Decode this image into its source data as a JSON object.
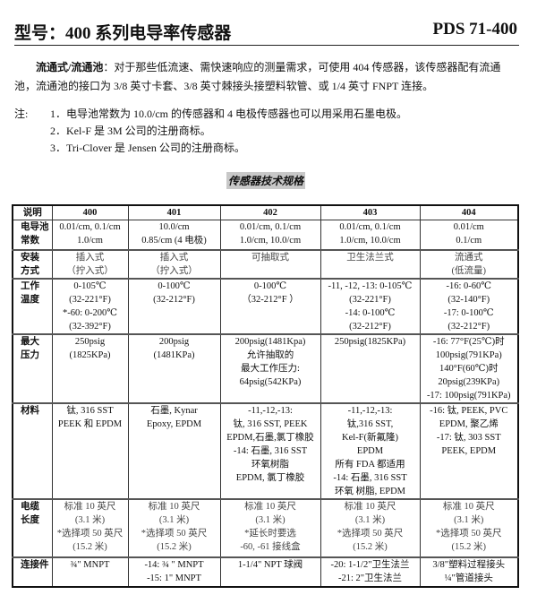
{
  "header": {
    "title": "型号：400 系列电导率传感器",
    "code": "PDS 71-400"
  },
  "intro": {
    "lead": "流通式/流通池",
    "text": "：对于那些低流速、需快速响应的测量需求，可使用 404 传感器，该传感器配有流通池，流通池的接口为 3/8 英寸卡套、3/8 英寸棘接头接塑料软管、或 1/4 英寸 FNPT 连接。"
  },
  "notes": {
    "label": "注:",
    "items": [
      "1．电导池常数为 10.0/cm 的传感器和 4 电极传感器也可以用采用石墨电极。",
      "2．Kel-F 是 3M 公司的注册商标。",
      "3．Tri-Clover 是 Jensen 公司的注册商标。"
    ]
  },
  "table": {
    "title": "传感器技术规格",
    "headers": [
      "说明",
      "400",
      "401",
      "402",
      "403",
      "404"
    ],
    "rows": [
      {
        "label": [
          "电导池",
          "常数"
        ],
        "cells": [
          [
            "0.01/cm, 0.1/cm",
            "1.0/cm"
          ],
          [
            "10.0/cm",
            "0.85/cm (4 电极)"
          ],
          [
            "0.01/cm, 0.1/cm",
            "1.0/cm, 10.0/cm"
          ],
          [
            "0.01/cm, 0.1/cm",
            "1.0/cm, 10.0/cm"
          ],
          [
            "0.01/cm",
            "0.1/cm"
          ]
        ]
      },
      {
        "label": [
          "安装",
          "方式"
        ],
        "cells": [
          [
            "插入式",
            "（拧入式）"
          ],
          [
            "插入式",
            "（拧入式）"
          ],
          [
            "可抽取式"
          ],
          [
            "卫生法兰式"
          ],
          [
            "流通式",
            "(低流量)"
          ]
        ]
      },
      {
        "label": [
          "工作",
          "温度"
        ],
        "cells": [
          [
            "0-105℃",
            "(32-221°F)",
            "*-60: 0-200℃",
            "(32-392°F)"
          ],
          [
            "0-100℃",
            "(32-212°F)"
          ],
          [
            "0-100℃",
            "（32-212°F ）"
          ],
          [
            "-11, -12, -13: 0-105℃",
            "(32-221°F)",
            "-14: 0-100℃",
            "(32-212°F)"
          ],
          [
            "-16: 0-60℃",
            "(32-140°F)",
            "-17: 0-100℃",
            "(32-212°F)"
          ]
        ]
      },
      {
        "label": [
          "最大",
          "压力"
        ],
        "cells": [
          [
            "250psig",
            "(1825KPa)"
          ],
          [
            "200psig",
            "(1481KPa)"
          ],
          [
            "200psig(1481Kpa)",
            "允许抽取的",
            "最大工作压力:",
            "64psig(542KPa)"
          ],
          [
            "250psig(1825KPa)"
          ],
          [
            "-16: 77°F(25℃)时",
            "100psig(791KPa)",
            "140°F(60℃)时",
            "20psig(239KPa)",
            "-17: 100psig(791KPa)"
          ]
        ]
      },
      {
        "label": [
          "材料"
        ],
        "cells": [
          [
            "钛, 316 SST",
            "PEEK 和 EPDM"
          ],
          [
            "石墨, Kynar",
            "Epoxy, EPDM"
          ],
          [
            "-11,-12,-13:",
            "钛, 316 SST, PEEK",
            "EPDM,石墨,氯丁橡胶",
            "-14: 石墨, 316 SST",
            "环氧树脂",
            "EPDM, 氯丁橡胶"
          ],
          [
            "-11,-12,-13:",
            "钛,316 SST,",
            "Kel-F(新氟隆)",
            "EPDM",
            "所有 FDA 都适用",
            "-14: 石墨, 316 SST",
            "环氧 树脂, EPDM"
          ],
          [
            "-16: 钛, PEEK, PVC",
            "EPDM, 聚乙烯",
            "-17: 钛, 303 SST",
            "PEEK, EPDM"
          ]
        ]
      },
      {
        "label": [
          "电缆",
          "长度"
        ],
        "cells": [
          [
            "标准 10 英尺",
            "(3.1 米)",
            "*选择项 50 英尺",
            "(15.2 米)"
          ],
          [
            "标准 10 英尺",
            "(3.1 米)",
            "*选择项 50 英尺",
            "(15.2 米)"
          ],
          [
            "标准 10 英尺",
            "(3.1 米)",
            "*延长时要选",
            "-60, -61 接线盒"
          ],
          [
            "标准 10 英尺",
            "(3.1 米)",
            "*选择项 50 英尺",
            "(15.2 米)"
          ],
          [
            "标准 10 英尺",
            "(3.1 米)",
            "*选择项 50 英尺",
            "(15.2 米)"
          ]
        ]
      },
      {
        "label": [
          "连接件"
        ],
        "cells": [
          [
            "¾\" MNPT"
          ],
          [
            "-14: ¾ \" MNPT",
            "-15: 1\" MNPT"
          ],
          [
            "1-1/4\" NPT 球阀"
          ],
          [
            "-20: 1-1/2\"卫生法兰",
            "-21: 2\"卫生法兰"
          ],
          [
            "3/8\"塑料过程接头",
            "¼\"管道接头"
          ]
        ]
      }
    ]
  }
}
